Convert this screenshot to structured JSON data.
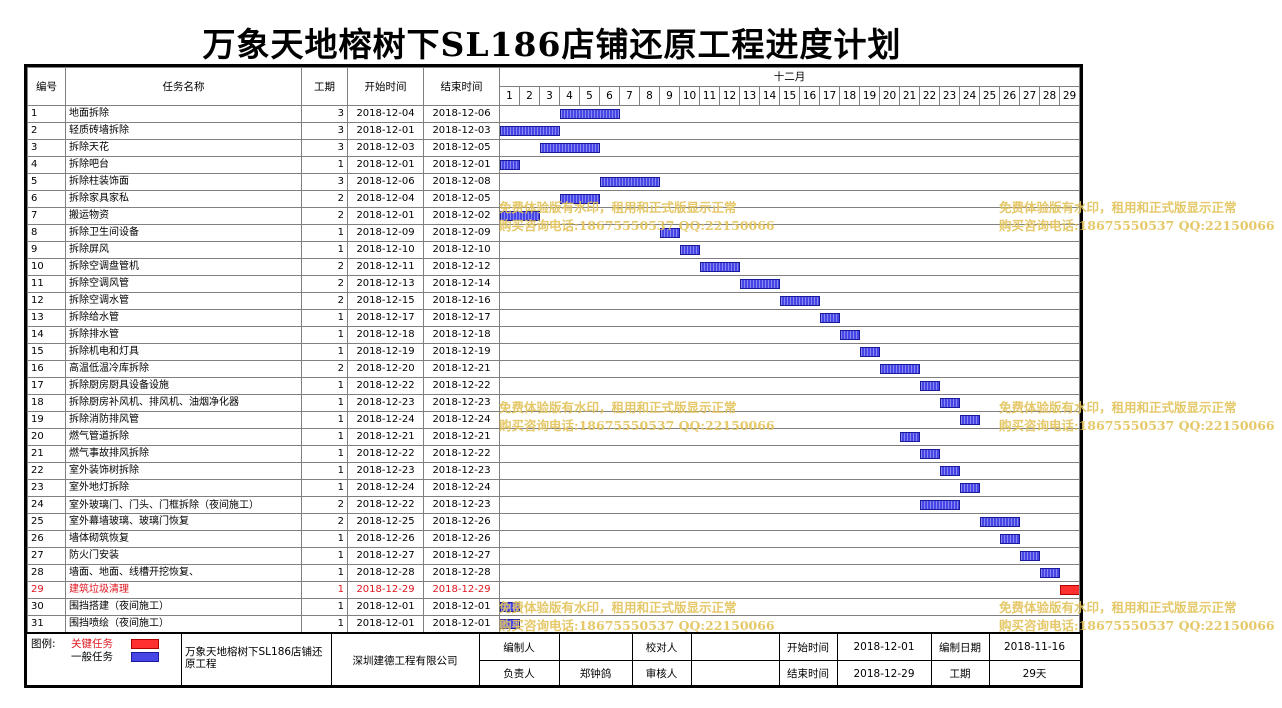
{
  "title": "万象天地榕树下SL186店铺还原工程进度计划",
  "headers": {
    "id": "编号",
    "name": "任务名称",
    "duration": "工期",
    "start": "开始时间",
    "end": "结束时间",
    "month": "十二月",
    "days": [
      "1",
      "2",
      "3",
      "4",
      "5",
      "6",
      "7",
      "8",
      "9",
      "10",
      "11",
      "12",
      "13",
      "14",
      "15",
      "16",
      "17",
      "18",
      "19",
      "20",
      "21",
      "22",
      "23",
      "24",
      "25",
      "26",
      "27",
      "28",
      "29"
    ]
  },
  "tasks": [
    {
      "id": "1",
      "name": "地面拆除",
      "duration": "3",
      "start": "2018-12-04",
      "end": "2018-12-06",
      "critical": false
    },
    {
      "id": "2",
      "name": "轻质砖墙拆除",
      "duration": "3",
      "start": "2018-12-01",
      "end": "2018-12-03",
      "critical": false
    },
    {
      "id": "3",
      "name": "拆除天花",
      "duration": "3",
      "start": "2018-12-03",
      "end": "2018-12-05",
      "critical": false
    },
    {
      "id": "4",
      "name": "拆除吧台",
      "duration": "1",
      "start": "2018-12-01",
      "end": "2018-12-01",
      "critical": false
    },
    {
      "id": "5",
      "name": "拆除柱装饰面",
      "duration": "3",
      "start": "2018-12-06",
      "end": "2018-12-08",
      "critical": false
    },
    {
      "id": "6",
      "name": "拆除家具家私",
      "duration": "2",
      "start": "2018-12-04",
      "end": "2018-12-05",
      "critical": false
    },
    {
      "id": "7",
      "name": "搬运物资",
      "duration": "2",
      "start": "2018-12-01",
      "end": "2018-12-02",
      "critical": false
    },
    {
      "id": "8",
      "name": "拆除卫生间设备",
      "duration": "1",
      "start": "2018-12-09",
      "end": "2018-12-09",
      "critical": false
    },
    {
      "id": "9",
      "name": "拆除屏风",
      "duration": "1",
      "start": "2018-12-10",
      "end": "2018-12-10",
      "critical": false
    },
    {
      "id": "10",
      "name": "拆除空调盘管机",
      "duration": "2",
      "start": "2018-12-11",
      "end": "2018-12-12",
      "critical": false
    },
    {
      "id": "11",
      "name": "拆除空调风管",
      "duration": "2",
      "start": "2018-12-13",
      "end": "2018-12-14",
      "critical": false
    },
    {
      "id": "12",
      "name": "拆除空调水管",
      "duration": "2",
      "start": "2018-12-15",
      "end": "2018-12-16",
      "critical": false
    },
    {
      "id": "13",
      "name": "拆除给水管",
      "duration": "1",
      "start": "2018-12-17",
      "end": "2018-12-17",
      "critical": false
    },
    {
      "id": "14",
      "name": "拆除排水管",
      "duration": "1",
      "start": "2018-12-18",
      "end": "2018-12-18",
      "critical": false
    },
    {
      "id": "15",
      "name": "拆除机电和灯具",
      "duration": "1",
      "start": "2018-12-19",
      "end": "2018-12-19",
      "critical": false
    },
    {
      "id": "16",
      "name": "高温低温冷库拆除",
      "duration": "2",
      "start": "2018-12-20",
      "end": "2018-12-21",
      "critical": false
    },
    {
      "id": "17",
      "name": "拆除厨房厨具设备设施",
      "duration": "1",
      "start": "2018-12-22",
      "end": "2018-12-22",
      "critical": false
    },
    {
      "id": "18",
      "name": "拆除厨房补风机、排风机、油烟净化器",
      "duration": "1",
      "start": "2018-12-23",
      "end": "2018-12-23",
      "critical": false
    },
    {
      "id": "19",
      "name": "拆除消防排风管",
      "duration": "1",
      "start": "2018-12-24",
      "end": "2018-12-24",
      "critical": false
    },
    {
      "id": "20",
      "name": "燃气管道拆除",
      "duration": "1",
      "start": "2018-12-21",
      "end": "2018-12-21",
      "critical": false
    },
    {
      "id": "21",
      "name": "燃气事故排风拆除",
      "duration": "1",
      "start": "2018-12-22",
      "end": "2018-12-22",
      "critical": false
    },
    {
      "id": "22",
      "name": "室外装饰树拆除",
      "duration": "1",
      "start": "2018-12-23",
      "end": "2018-12-23",
      "critical": false
    },
    {
      "id": "23",
      "name": "室外地灯拆除",
      "duration": "1",
      "start": "2018-12-24",
      "end": "2018-12-24",
      "critical": false
    },
    {
      "id": "24",
      "name": "室外玻璃门、门头、门框拆除（夜间施工）",
      "duration": "2",
      "start": "2018-12-22",
      "end": "2018-12-23",
      "critical": false
    },
    {
      "id": "25",
      "name": "室外幕墙玻璃、玻璃门恢复",
      "duration": "2",
      "start": "2018-12-25",
      "end": "2018-12-26",
      "critical": false
    },
    {
      "id": "26",
      "name": "墙体砌筑恢复",
      "duration": "1",
      "start": "2018-12-26",
      "end": "2018-12-26",
      "critical": false
    },
    {
      "id": "27",
      "name": "防火门安装",
      "duration": "1",
      "start": "2018-12-27",
      "end": "2018-12-27",
      "critical": false
    },
    {
      "id": "28",
      "name": "墙面、地面、线槽开挖恢复、",
      "duration": "1",
      "start": "2018-12-28",
      "end": "2018-12-28",
      "critical": false
    },
    {
      "id": "29",
      "name": "建筑垃圾清理",
      "duration": "1",
      "start": "2018-12-29",
      "end": "2018-12-29",
      "critical": true
    },
    {
      "id": "30",
      "name": "围挡搭建（夜间施工）",
      "duration": "1",
      "start": "2018-12-01",
      "end": "2018-12-01",
      "critical": false
    },
    {
      "id": "31",
      "name": "围挡喷绘（夜间施工）",
      "duration": "1",
      "start": "2018-12-01",
      "end": "2018-12-01",
      "critical": false
    }
  ],
  "colors": {
    "critical": "#ff3030",
    "normal": "#4646e6",
    "watermark": "#e3c35a"
  },
  "watermark": {
    "line1": "免费体验版有水印，租用和正式版显示正常",
    "line2": "购买咨询电话:18675550537 QQ:22150066"
  },
  "footer": {
    "legend_label": "图例:",
    "legend_critical": "关键任务",
    "legend_normal": "一般任务",
    "project_name": "万象天地榕树下SL186店铺还原工程",
    "company": "深圳建德工程有限公司",
    "compiler_label": "编制人",
    "compiler_value": "",
    "checker_label": "校对人",
    "checker_value": "",
    "start_label": "开始时间",
    "start_value": "2018-12-01",
    "compile_date_label": "编制日期",
    "compile_date_value": "2018-11-16",
    "owner_label": "负责人",
    "owner_value": "郑钟鸽",
    "reviewer_label": "审核人",
    "reviewer_value": "",
    "end_label": "结束时间",
    "end_value": "2018-12-29",
    "duration_label": "工期",
    "duration_value": "29天"
  }
}
